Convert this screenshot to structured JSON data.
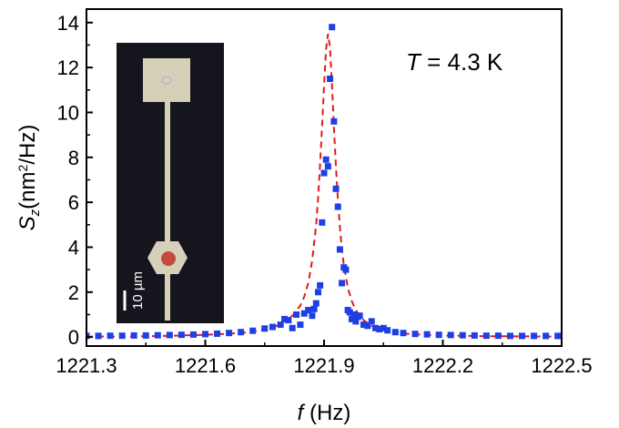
{
  "chart_data": {
    "type": "scatter",
    "title": "",
    "xlabel": {
      "var": "f",
      "unit": " (Hz)"
    },
    "ylabel": {
      "var": "S",
      "sub": "z",
      "pre": "(nm",
      "sup": "2",
      "post": "/Hz)"
    },
    "xlim": [
      1221.3,
      1222.5
    ],
    "ylim": [
      -0.4,
      14.6
    ],
    "xticks": [
      1221.3,
      1221.6,
      1221.9,
      1222.2,
      1222.5
    ],
    "xtick_labels": [
      "1221.3",
      "1221.6",
      "1221.9",
      "1222.2",
      "1222.5"
    ],
    "yticks": [
      0,
      2,
      4,
      6,
      8,
      10,
      12,
      14
    ],
    "ytick_labels": [
      "0",
      "2",
      "4",
      "6",
      "8",
      "10",
      "12",
      "14"
    ],
    "annotation": {
      "var": "T",
      "text": " = 4.3 K"
    },
    "inset_scale_label": "10 µm",
    "colors": {
      "data": "#1f3fe6",
      "fit": "#e01b1b",
      "inset_bg": "#15151e",
      "inset_pad": "#d6d0b8"
    },
    "series": [
      {
        "kind": "points",
        "x": [
          1221.3,
          1221.33,
          1221.36,
          1221.39,
          1221.42,
          1221.45,
          1221.48,
          1221.51,
          1221.54,
          1221.57,
          1221.6,
          1221.63,
          1221.66,
          1221.69,
          1221.72,
          1221.75,
          1221.77,
          1221.79,
          1221.8,
          1221.81,
          1221.82,
          1221.83,
          1221.84,
          1221.85,
          1221.86,
          1221.87,
          1221.875,
          1221.88,
          1221.885,
          1221.89,
          1221.895,
          1221.9,
          1221.905,
          1221.91,
          1221.915,
          1221.92,
          1221.925,
          1221.93,
          1221.935,
          1221.94,
          1221.945,
          1221.95,
          1221.955,
          1221.96,
          1221.965,
          1221.97,
          1221.975,
          1221.98,
          1221.985,
          1221.99,
          1222.0,
          1222.01,
          1222.02,
          1222.03,
          1222.04,
          1222.05,
          1222.06,
          1222.08,
          1222.1,
          1222.13,
          1222.16,
          1222.19,
          1222.22,
          1222.25,
          1222.28,
          1222.31,
          1222.34,
          1222.37,
          1222.4,
          1222.43,
          1222.46,
          1222.49
        ],
        "y": [
          0.05,
          0.05,
          0.06,
          0.06,
          0.07,
          0.07,
          0.08,
          0.09,
          0.1,
          0.11,
          0.13,
          0.15,
          0.18,
          0.22,
          0.28,
          0.38,
          0.45,
          0.55,
          0.8,
          0.75,
          0.4,
          1.0,
          0.55,
          1.05,
          1.2,
          0.95,
          1.25,
          1.5,
          2.0,
          2.3,
          5.1,
          7.3,
          7.9,
          7.6,
          11.5,
          13.8,
          9.6,
          6.6,
          5.8,
          3.9,
          2.4,
          3.1,
          3.0,
          1.2,
          1.1,
          0.8,
          1.0,
          0.7,
          0.9,
          0.95,
          0.55,
          0.5,
          0.7,
          0.4,
          0.35,
          0.4,
          0.3,
          0.22,
          0.18,
          0.14,
          0.12,
          0.1,
          0.09,
          0.08,
          0.07,
          0.06,
          0.06,
          0.05,
          0.05,
          0.05,
          0.05,
          0.05
        ]
      },
      {
        "kind": "fit-line",
        "x": [
          1221.3,
          1221.4,
          1221.5,
          1221.6,
          1221.65,
          1221.7,
          1221.74,
          1221.78,
          1221.8,
          1221.82,
          1221.84,
          1221.85,
          1221.86,
          1221.87,
          1221.88,
          1221.885,
          1221.89,
          1221.895,
          1221.9,
          1221.905,
          1221.91,
          1221.915,
          1221.92,
          1221.925,
          1221.93,
          1221.935,
          1221.94,
          1221.945,
          1221.95,
          1221.96,
          1221.97,
          1221.98,
          1221.99,
          1222.0,
          1222.02,
          1222.04,
          1222.08,
          1222.12,
          1222.2,
          1222.3,
          1222.4,
          1222.5
        ],
        "y": [
          0.02,
          0.03,
          0.05,
          0.1,
          0.14,
          0.2,
          0.3,
          0.5,
          0.7,
          0.95,
          1.4,
          1.8,
          2.4,
          3.4,
          5.0,
          6.2,
          7.7,
          9.4,
          11.2,
          12.8,
          13.5,
          12.9,
          11.2,
          9.3,
          7.6,
          6.1,
          4.9,
          3.9,
          3.2,
          2.2,
          1.6,
          1.2,
          0.95,
          0.75,
          0.5,
          0.36,
          0.2,
          0.13,
          0.07,
          0.04,
          0.03,
          0.02
        ]
      }
    ]
  }
}
